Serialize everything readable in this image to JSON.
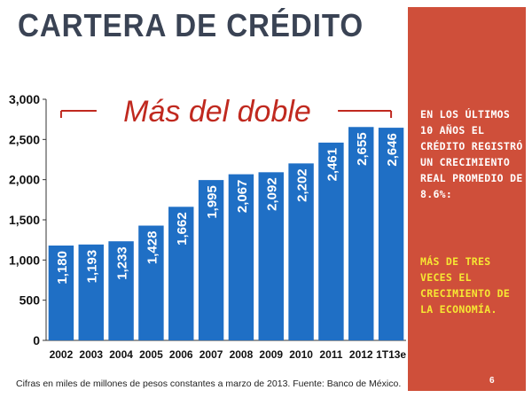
{
  "slide": {
    "title": "CARTERA DE CRÉDITO",
    "footnote": "Cifras en miles de millones de pesos constantes a marzo de 2013. Fuente: Banco de México.",
    "page_number": "6"
  },
  "panel": {
    "text": "EN LOS ÚLTIMOS 10 AÑOS EL CRÉDITO REGISTRÓ UN CRECIMIENTO REAL PROMEDIO DE 8.6%:",
    "highlight": "MÁS DE TRES VECES EL CRECIMIENTO DE LA ECONOMÍA.",
    "background_color": "#cf4f3a",
    "highlight_color": "#f6e733"
  },
  "chart_data": {
    "type": "bar",
    "categories": [
      "2002",
      "2003",
      "2004",
      "2005",
      "2006",
      "2007",
      "2008",
      "2009",
      "2010",
      "2011",
      "2012",
      "1T13e"
    ],
    "values": [
      1180,
      1193,
      1233,
      1428,
      1662,
      1995,
      2067,
      2092,
      2202,
      2461,
      2655,
      2646
    ],
    "data_labels": [
      "1,180",
      "1,193",
      "1,233",
      "1,428",
      "1,662",
      "1,995",
      "2,067",
      "2,092",
      "2,202",
      "2,461",
      "2,655",
      "2,646"
    ],
    "yticks": [
      0,
      500,
      1000,
      1500,
      2000,
      2500,
      3000
    ],
    "ytick_labels": [
      "0",
      "500",
      "1,000",
      "1,500",
      "2,000",
      "2,500",
      "3,000"
    ],
    "ylim": [
      0,
      3000
    ],
    "annotation": "Más del doble",
    "bar_color": "#1f6fc5",
    "annotation_color": "#c0291f",
    "grid": false,
    "title": "",
    "xlabel": "",
    "ylabel": ""
  }
}
